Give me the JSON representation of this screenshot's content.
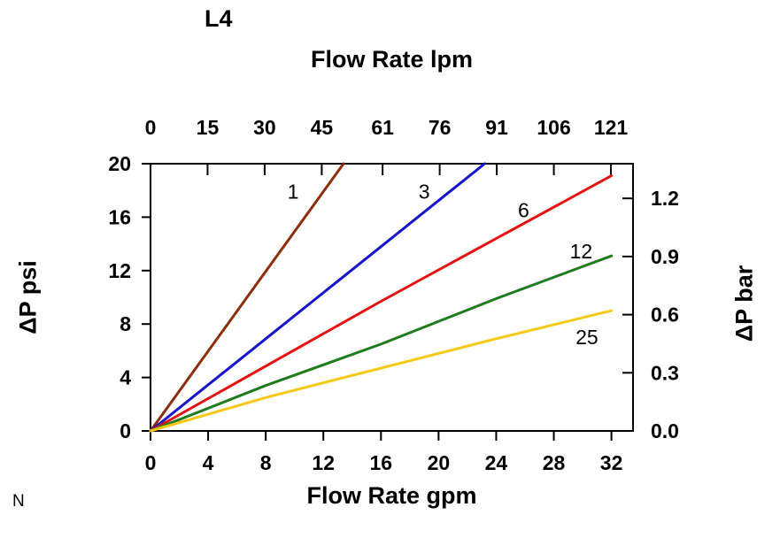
{
  "page": {
    "footer_note": "N"
  },
  "chart_data": {
    "type": "line",
    "title": "L4",
    "top_axis": {
      "label": "Flow Rate lpm",
      "tick_labels": [
        "0",
        "15",
        "30",
        "45",
        "61",
        "76",
        "91",
        "106",
        "121"
      ],
      "lpm_per_gpm": 3.7854
    },
    "bottom_axis": {
      "label": "Flow Rate gpm",
      "tick_labels": [
        "0",
        "4",
        "8",
        "12",
        "16",
        "20",
        "24",
        "28",
        "32"
      ]
    },
    "left_axis": {
      "label": "ΔP psi",
      "tick_labels": [
        "0",
        "4",
        "8",
        "12",
        "16",
        "20"
      ]
    },
    "right_axis": {
      "label": "ΔP bar",
      "tick_labels": [
        "0.0",
        "0.3",
        "0.6",
        "0.9",
        "1.2"
      ],
      "psi_per_bar": 14.5038
    },
    "x_range": [
      0,
      33.5
    ],
    "y_range": [
      0,
      20
    ],
    "grid": false,
    "legend": "inline-curve-labels",
    "series": [
      {
        "name": "1",
        "color": "#8C2E0B",
        "points": [
          [
            0,
            0
          ],
          [
            6.7,
            10
          ],
          [
            13.4,
            20
          ]
        ],
        "label_pos": [
          9.9,
          17.4
        ]
      },
      {
        "name": "3",
        "color": "#1414CC",
        "points": [
          [
            0,
            0
          ],
          [
            11.6,
            10
          ],
          [
            23.2,
            20
          ]
        ],
        "label_pos": [
          19.0,
          17.4
        ]
      },
      {
        "name": "6",
        "color": "#E81111",
        "points": [
          [
            0,
            0
          ],
          [
            16,
            9.7
          ],
          [
            32,
            19.1
          ]
        ],
        "label_pos": [
          25.9,
          16.0
        ]
      },
      {
        "name": "12",
        "color": "#1E7B1E",
        "points": [
          [
            0,
            0
          ],
          [
            8,
            3.4
          ],
          [
            16,
            6.5
          ],
          [
            24,
            9.9
          ],
          [
            32,
            13.1
          ]
        ],
        "label_pos": [
          29.9,
          12.9
        ]
      },
      {
        "name": "25",
        "color": "#F5C913",
        "points": [
          [
            0,
            0
          ],
          [
            8,
            2.5
          ],
          [
            16,
            4.7
          ],
          [
            24,
            6.9
          ],
          [
            32,
            9.0
          ]
        ],
        "label_pos": [
          30.3,
          6.5
        ]
      }
    ]
  }
}
